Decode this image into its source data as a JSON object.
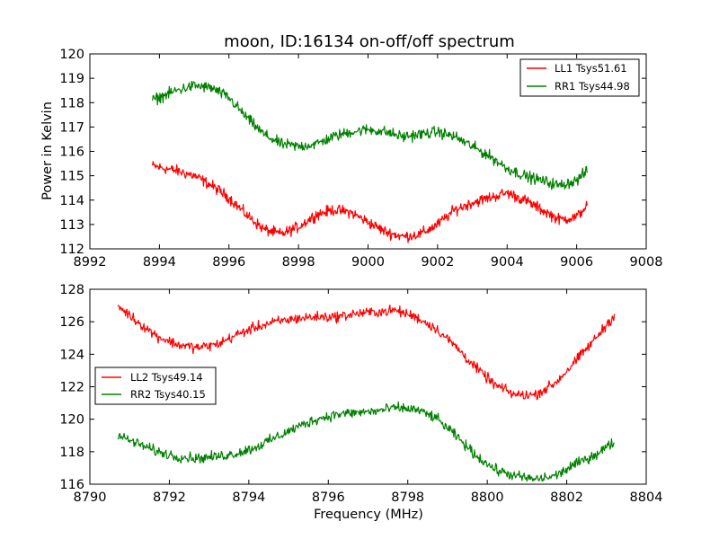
{
  "chart_data": [
    {
      "type": "line",
      "title": "moon, ID:16134 on-off/off spectrum",
      "xlabel": "",
      "ylabel": "Power in Kelvin",
      "xlim": [
        8992,
        9008
      ],
      "ylim": [
        112,
        120
      ],
      "xticks": [
        8992,
        8994,
        8996,
        8998,
        9000,
        9002,
        9004,
        9006,
        9008
      ],
      "yticks": [
        112,
        113,
        114,
        115,
        116,
        117,
        118,
        119,
        120
      ],
      "grid": false,
      "legend_position": "upper right",
      "x_range": [
        8993.8,
        9006.3
      ],
      "series": [
        {
          "name": "LL1 Tsys51.61",
          "color": "#ff0000",
          "x": [
            8993.8,
            8994.5,
            8995.0,
            8995.5,
            8996.0,
            8996.5,
            8997.0,
            8997.5,
            8998.0,
            8998.5,
            8999.0,
            8999.5,
            9000.0,
            9000.5,
            9001.0,
            9001.5,
            9002.0,
            9002.5,
            9003.0,
            9003.5,
            9004.0,
            9004.5,
            9005.0,
            9005.5,
            9006.0,
            9006.3
          ],
          "values": [
            115.4,
            115.2,
            115.0,
            114.6,
            114.1,
            113.4,
            112.8,
            112.6,
            112.9,
            113.4,
            113.6,
            113.5,
            113.1,
            112.7,
            112.5,
            112.6,
            113.0,
            113.6,
            113.9,
            114.1,
            114.3,
            114.0,
            113.6,
            113.2,
            113.3,
            113.8
          ],
          "noise": 0.25
        },
        {
          "name": "RR1 Tsys44.98",
          "color": "#008000",
          "x": [
            8993.8,
            8994.5,
            8995.0,
            8995.5,
            8996.0,
            8996.5,
            8997.0,
            8997.5,
            8998.0,
            8998.5,
            8999.0,
            8999.5,
            9000.0,
            9000.5,
            9001.0,
            9001.5,
            9002.0,
            9002.5,
            9003.0,
            9003.5,
            9004.0,
            9004.5,
            9005.0,
            9005.5,
            9006.0,
            9006.3
          ],
          "values": [
            118.1,
            118.5,
            118.7,
            118.6,
            118.2,
            117.4,
            116.7,
            116.3,
            116.2,
            116.3,
            116.6,
            116.8,
            116.9,
            116.8,
            116.6,
            116.7,
            116.8,
            116.6,
            116.2,
            115.8,
            115.3,
            115.0,
            114.8,
            114.6,
            114.8,
            115.2
          ],
          "noise": 0.25
        }
      ]
    },
    {
      "type": "line",
      "title": "",
      "xlabel": "Frequency (MHz)",
      "ylabel": "",
      "xlim": [
        8790,
        8804
      ],
      "ylim": [
        116,
        128
      ],
      "xticks": [
        8790,
        8792,
        8794,
        8796,
        8798,
        8800,
        8802,
        8804
      ],
      "yticks": [
        116,
        118,
        120,
        122,
        124,
        126,
        128
      ],
      "grid": false,
      "legend_position": "center left",
      "x_range": [
        8790.7,
        8803.2
      ],
      "series": [
        {
          "name": "LL2 Tsys49.14",
          "color": "#ff0000",
          "x": [
            8790.7,
            8791.2,
            8791.7,
            8792.2,
            8792.7,
            8793.2,
            8793.7,
            8794.2,
            8794.7,
            8795.2,
            8795.7,
            8796.2,
            8796.7,
            8797.2,
            8797.7,
            8798.2,
            8798.7,
            8799.2,
            8799.7,
            8800.2,
            8800.7,
            8801.2,
            8801.7,
            8802.2,
            8802.7,
            8803.2
          ],
          "values": [
            127.0,
            126.0,
            125.1,
            124.6,
            124.4,
            124.6,
            125.2,
            125.7,
            126.0,
            126.2,
            126.3,
            126.3,
            126.5,
            126.6,
            126.7,
            126.3,
            125.6,
            124.5,
            123.2,
            122.1,
            121.5,
            121.5,
            122.2,
            123.5,
            124.9,
            126.4
          ],
          "noise": 0.35
        },
        {
          "name": "RR2 Tsys40.15",
          "color": "#008000",
          "x": [
            8790.7,
            8791.2,
            8791.7,
            8792.2,
            8792.7,
            8793.2,
            8793.7,
            8794.2,
            8794.7,
            8795.2,
            8795.7,
            8796.2,
            8796.7,
            8797.2,
            8797.7,
            8798.2,
            8798.7,
            8799.2,
            8799.7,
            8800.2,
            8800.7,
            8801.2,
            8801.7,
            8802.2,
            8802.7,
            8803.2
          ],
          "values": [
            119.0,
            118.5,
            118.0,
            117.7,
            117.6,
            117.7,
            117.9,
            118.3,
            118.9,
            119.5,
            120.0,
            120.3,
            120.4,
            120.5,
            120.7,
            120.6,
            120.1,
            119.0,
            117.8,
            116.9,
            116.5,
            116.3,
            116.5,
            117.2,
            117.8,
            118.6
          ],
          "noise": 0.35
        }
      ]
    }
  ]
}
